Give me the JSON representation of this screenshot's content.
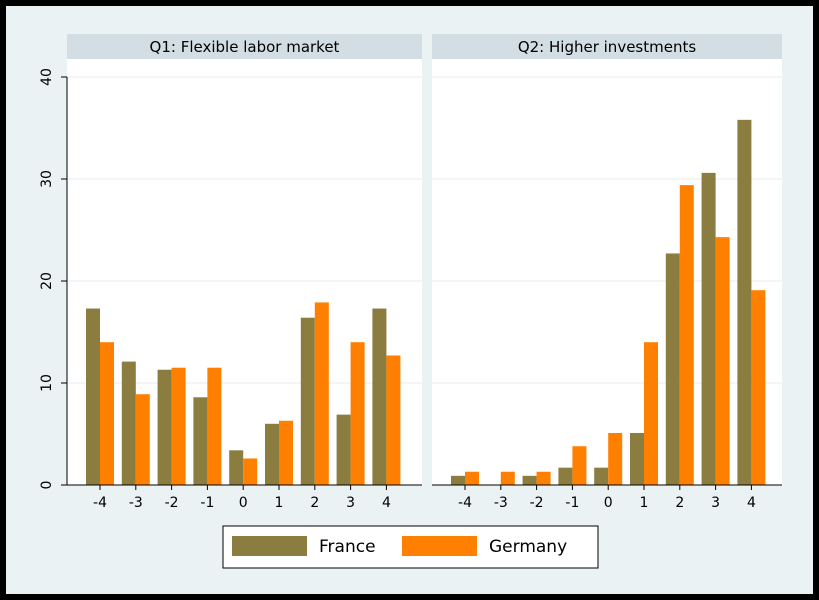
{
  "chart_data": [
    {
      "type": "bar",
      "title": "Q1: Flexible labor market",
      "categories": [
        "-4",
        "-3",
        "-2",
        "-1",
        "0",
        "1",
        "2",
        "3",
        "4"
      ],
      "series": [
        {
          "name": "France",
          "values": [
            17.3,
            12.1,
            11.3,
            8.6,
            3.4,
            6.0,
            16.4,
            6.9,
            17.3
          ]
        },
        {
          "name": "Germany",
          "values": [
            14.0,
            8.9,
            11.5,
            11.5,
            2.6,
            6.3,
            17.9,
            14.0,
            12.7
          ]
        }
      ],
      "ylim": [
        0,
        40
      ],
      "yticks": [
        0,
        10,
        20,
        30,
        40
      ],
      "grid": true
    },
    {
      "type": "bar",
      "title": "Q2: Higher investments",
      "categories": [
        "-4",
        "-3",
        "-2",
        "-1",
        "0",
        "1",
        "2",
        "3",
        "4"
      ],
      "series": [
        {
          "name": "France",
          "values": [
            0.9,
            0.0,
            0.9,
            1.7,
            1.7,
            5.1,
            22.7,
            30.6,
            35.8
          ]
        },
        {
          "name": "Germany",
          "values": [
            1.3,
            1.3,
            1.3,
            3.8,
            5.1,
            14.0,
            29.4,
            24.3,
            19.1
          ]
        }
      ],
      "ylim": [
        0,
        40
      ],
      "yticks": [
        0,
        10,
        20,
        30,
        40
      ],
      "grid": true
    }
  ],
  "legend": {
    "position": "bottom-center",
    "items": [
      {
        "label": "France",
        "color": "#8b7d3f"
      },
      {
        "label": "Germany",
        "color": "#ff7f00"
      }
    ]
  },
  "colors": {
    "france": "#8b7d3f",
    "germany": "#ff7f00",
    "background": "#eaf2f3",
    "panel": "#ffffff",
    "title_strip": "#d3dde4",
    "grid": "#e6ecef"
  }
}
